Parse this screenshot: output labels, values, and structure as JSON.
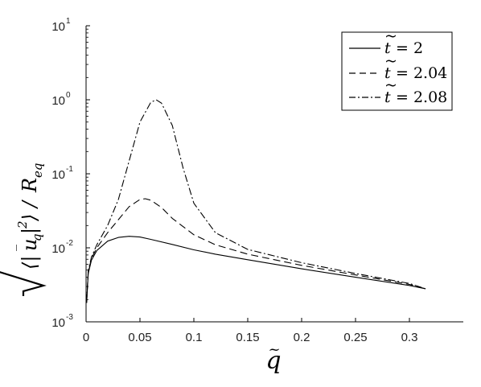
{
  "chart_data": {
    "type": "line",
    "title": "",
    "xlabel": "q̃",
    "ylabel": "√⟨|ū_q|²⟩ / R_eq",
    "xlim": [
      0,
      0.35
    ],
    "ylim": [
      0.001,
      10
    ],
    "yscale": "log",
    "x_ticks": [
      "0",
      "0.05",
      "0.1",
      "0.15",
      "0.2",
      "0.25",
      "0.3"
    ],
    "y_ticks": [
      {
        "base": "10",
        "exp": "-3"
      },
      {
        "base": "10",
        "exp": "-2"
      },
      {
        "base": "10",
        "exp": "-1"
      },
      {
        "base": "10",
        "exp": "0"
      },
      {
        "base": "10",
        "exp": "1"
      }
    ],
    "grid": false,
    "legend_position": "top-right",
    "series": [
      {
        "name": "t̃ = 2",
        "style": "solid",
        "x": [
          0.0005,
          0.002,
          0.005,
          0.01,
          0.02,
          0.03,
          0.04,
          0.05,
          0.06,
          0.08,
          0.1,
          0.12,
          0.15,
          0.2,
          0.25,
          0.3,
          0.315
        ],
        "y": [
          0.0018,
          0.0045,
          0.0068,
          0.0092,
          0.0123,
          0.0138,
          0.0143,
          0.014,
          0.013,
          0.0111,
          0.0094,
          0.0082,
          0.0069,
          0.0052,
          0.004,
          0.0031,
          0.0028
        ]
      },
      {
        "name": "t̃ = 2.04",
        "style": "dashed",
        "x": [
          0.0005,
          0.002,
          0.005,
          0.01,
          0.02,
          0.03,
          0.04,
          0.05,
          0.055,
          0.06,
          0.07,
          0.08,
          0.1,
          0.12,
          0.15,
          0.2,
          0.25,
          0.3,
          0.315
        ],
        "y": [
          0.0019,
          0.0047,
          0.0072,
          0.01,
          0.016,
          0.024,
          0.036,
          0.045,
          0.046,
          0.044,
          0.035,
          0.025,
          0.015,
          0.011,
          0.0082,
          0.0058,
          0.0043,
          0.0032,
          0.0028
        ]
      },
      {
        "name": "t̃ = 2.08",
        "style": "dash-dot",
        "x": [
          0.0005,
          0.002,
          0.005,
          0.01,
          0.02,
          0.03,
          0.04,
          0.05,
          0.06,
          0.065,
          0.07,
          0.08,
          0.09,
          0.1,
          0.12,
          0.15,
          0.2,
          0.25,
          0.3,
          0.315
        ],
        "y": [
          0.0018,
          0.0049,
          0.0075,
          0.011,
          0.02,
          0.045,
          0.15,
          0.5,
          0.92,
          1.0,
          0.9,
          0.45,
          0.12,
          0.04,
          0.016,
          0.0095,
          0.0063,
          0.0045,
          0.0033,
          0.0028
        ]
      }
    ]
  }
}
